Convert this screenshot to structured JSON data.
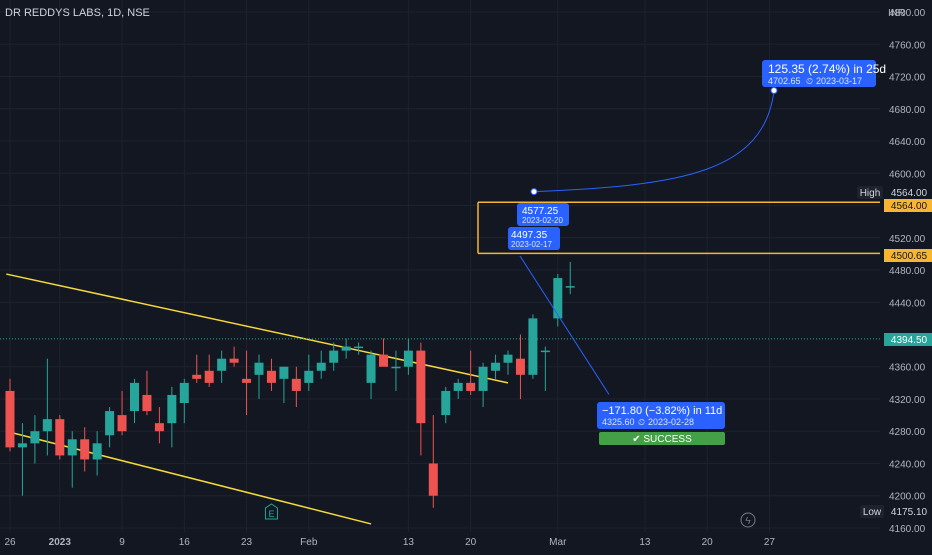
{
  "header": {
    "title": "DR REDDYS LABS, 1D, NSE",
    "currency": "INR"
  },
  "colors": {
    "background": "#131722",
    "grid": "#1e222d",
    "axis_text": "#b2b5be",
    "up": "#26a69a",
    "down": "#ef5350",
    "trendline": "#f5d93a",
    "level": "#f7b531",
    "annotation": "#2962ff",
    "success": "#43a047",
    "current_price": "#26a69a"
  },
  "chart_data": {
    "type": "candlestick",
    "ylim": [
      4155,
      4810
    ],
    "y_ticks": [
      4800,
      4760,
      4720,
      4680,
      4640,
      4600,
      4560,
      4520,
      4480,
      4440,
      4360,
      4320,
      4280,
      4240,
      4200,
      4160
    ],
    "x_ticks": [
      {
        "label": "26",
        "i": 0
      },
      {
        "label": "2023",
        "i": 4
      },
      {
        "label": "9",
        "i": 9
      },
      {
        "label": "16",
        "i": 14
      },
      {
        "label": "23",
        "i": 19
      },
      {
        "label": "Feb",
        "i": 24
      },
      {
        "label": "13",
        "i": 32
      },
      {
        "label": "20",
        "i": 37
      },
      {
        "label": "Mar",
        "i": 44
      },
      {
        "label": "13",
        "i": 51
      },
      {
        "label": "20",
        "i": 56
      },
      {
        "label": "27",
        "i": 61
      }
    ],
    "candles": [
      {
        "o": 4330,
        "h": 4345,
        "l": 4255,
        "c": 4260
      },
      {
        "o": 4260,
        "h": 4290,
        "l": 4200,
        "c": 4265
      },
      {
        "o": 4265,
        "h": 4300,
        "l": 4240,
        "c": 4280
      },
      {
        "o": 4280,
        "h": 4370,
        "l": 4250,
        "c": 4295
      },
      {
        "o": 4295,
        "h": 4300,
        "l": 4245,
        "c": 4250
      },
      {
        "o": 4250,
        "h": 4280,
        "l": 4210,
        "c": 4270
      },
      {
        "o": 4270,
        "h": 4285,
        "l": 4230,
        "c": 4245
      },
      {
        "o": 4245,
        "h": 4280,
        "l": 4225,
        "c": 4265
      },
      {
        "o": 4275,
        "h": 4310,
        "l": 4260,
        "c": 4305
      },
      {
        "o": 4300,
        "h": 4330,
        "l": 4275,
        "c": 4280
      },
      {
        "o": 4305,
        "h": 4345,
        "l": 4290,
        "c": 4340
      },
      {
        "o": 4325,
        "h": 4355,
        "l": 4300,
        "c": 4305
      },
      {
        "o": 4290,
        "h": 4310,
        "l": 4265,
        "c": 4280
      },
      {
        "o": 4290,
        "h": 4335,
        "l": 4260,
        "c": 4325
      },
      {
        "o": 4315,
        "h": 4345,
        "l": 4290,
        "c": 4340
      },
      {
        "o": 4350,
        "h": 4375,
        "l": 4340,
        "c": 4345
      },
      {
        "o": 4355,
        "h": 4375,
        "l": 4335,
        "c": 4340
      },
      {
        "o": 4355,
        "h": 4380,
        "l": 4340,
        "c": 4370
      },
      {
        "o": 4370,
        "h": 4385,
        "l": 4360,
        "c": 4365
      },
      {
        "o": 4345,
        "h": 4380,
        "l": 4300,
        "c": 4340
      },
      {
        "o": 4350,
        "h": 4375,
        "l": 4320,
        "c": 4365
      },
      {
        "o": 4355,
        "h": 4370,
        "l": 4330,
        "c": 4340
      },
      {
        "o": 4345,
        "h": 4360,
        "l": 4315,
        "c": 4360
      },
      {
        "o": 4345,
        "h": 4360,
        "l": 4310,
        "c": 4330
      },
      {
        "o": 4340,
        "h": 4375,
        "l": 4330,
        "c": 4355
      },
      {
        "o": 4355,
        "h": 4380,
        "l": 4345,
        "c": 4365
      },
      {
        "o": 4365,
        "h": 4390,
        "l": 4355,
        "c": 4380
      },
      {
        "o": 4380,
        "h": 4395,
        "l": 4370,
        "c": 4385
      },
      {
        "o": 4385,
        "h": 4390,
        "l": 4375,
        "c": 4385
      },
      {
        "o": 4340,
        "h": 4380,
        "l": 4320,
        "c": 4375
      },
      {
        "o": 4375,
        "h": 4395,
        "l": 4365,
        "c": 4360
      },
      {
        "o": 4360,
        "h": 4380,
        "l": 4330,
        "c": 4360
      },
      {
        "o": 4360,
        "h": 4395,
        "l": 4350,
        "c": 4380
      },
      {
        "o": 4380,
        "h": 4390,
        "l": 4250,
        "c": 4290
      },
      {
        "o": 4240,
        "h": 4300,
        "l": 4185,
        "c": 4200
      },
      {
        "o": 4300,
        "h": 4335,
        "l": 4290,
        "c": 4330
      },
      {
        "o": 4330,
        "h": 4345,
        "l": 4320,
        "c": 4340
      },
      {
        "o": 4340,
        "h": 4380,
        "l": 4325,
        "c": 4330
      },
      {
        "o": 4330,
        "h": 4365,
        "l": 4310,
        "c": 4360
      },
      {
        "o": 4355,
        "h": 4375,
        "l": 4345,
        "c": 4365
      },
      {
        "o": 4365,
        "h": 4380,
        "l": 4350,
        "c": 4375
      },
      {
        "o": 4370,
        "h": 4400,
        "l": 4320,
        "c": 4350
      },
      {
        "o": 4350,
        "h": 4425,
        "l": 4345,
        "c": 4420
      },
      {
        "o": 4380,
        "h": 4385,
        "l": 4330,
        "c": 4380
      },
      {
        "o": 4420,
        "h": 4475,
        "l": 4410,
        "c": 4470
      },
      {
        "o": 4460,
        "h": 4490,
        "l": 4450,
        "c": 4460
      }
    ],
    "trendlines": [
      {
        "from": {
          "i": -0.3,
          "y": 4475
        },
        "to": {
          "i": 40,
          "y": 4340
        }
      },
      {
        "from": {
          "i": -0.3,
          "y": 4280
        },
        "to": {
          "i": 29,
          "y": 4165
        }
      }
    ],
    "levels": [
      {
        "label": "High",
        "value": 4564.0,
        "price_label": "4564.00"
      },
      {
        "label": "",
        "value": 4500.65,
        "price_label": "4500.65"
      }
    ],
    "current_price": {
      "value": 4394.5,
      "label": "4394.50"
    },
    "low": {
      "label": "Low",
      "value_label": "4175.10"
    },
    "markers": [
      {
        "label": "E",
        "i": 21
      }
    ],
    "annotations": [
      {
        "line1": "125.35 (2.74%) in 25d",
        "line2": "4702.65",
        "line3": "2023-03-17"
      },
      {
        "line1": "4577.25",
        "line2": "2023-02-20"
      },
      {
        "line1": "4497.35",
        "line2": "2023-02-17"
      },
      {
        "line1": "−171.80 (−3.82%) in 11d",
        "line2": "4325.60",
        "line3": "2023-02-28"
      }
    ],
    "badge": {
      "label": "✔ SUCCESS"
    }
  }
}
